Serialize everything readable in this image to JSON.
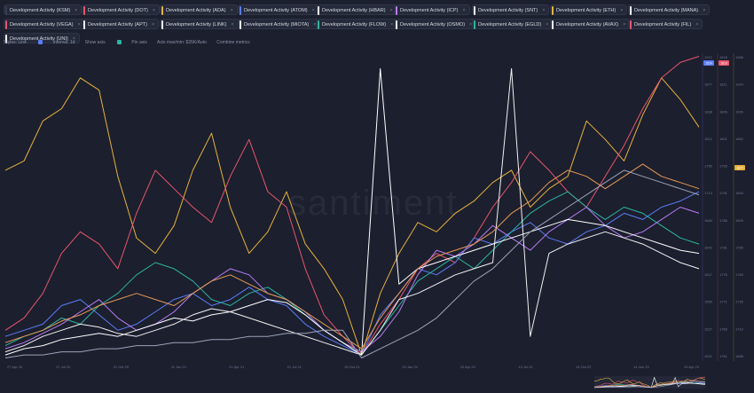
{
  "metric_chips": [
    {
      "label": "Development Activity (KSM)",
      "color": "#3b3f54",
      "close": "×"
    },
    {
      "label": "Development Activity (DOT)",
      "color": "#e8556d",
      "close": "×"
    },
    {
      "label": "Development Activity (ADA)",
      "color": "#e6b33b",
      "close": "×"
    },
    {
      "label": "Development Activity (ATOM)",
      "color": "#5b7cf7",
      "close": "×"
    },
    {
      "label": "Development Activity (HBAR)",
      "color": "#ffffff",
      "close": "×"
    },
    {
      "label": "Development Activity (ICP)",
      "color": "#b77cf2",
      "close": "×"
    },
    {
      "label": "Development Activity (SNT)",
      "color": "#ffffff",
      "close": "×"
    },
    {
      "label": "Development Activity (ETH)",
      "color": "#e6b33b",
      "close": "×"
    },
    {
      "label": "Development Activity (MANA)",
      "color": "#ffffff",
      "close": "×"
    },
    {
      "label": "Development Activity (VEGA)",
      "color": "#e8556d",
      "close": "×"
    },
    {
      "label": "Development Activity (APT)",
      "color": "#ffffff",
      "close": "×"
    },
    {
      "label": "Development Activity (LINK)",
      "color": "#ffffff",
      "close": "×"
    },
    {
      "label": "Development Activity (MIOTA)",
      "color": "#ffffff",
      "close": "×"
    },
    {
      "label": "Development Activity (FLOW)",
      "color": "#2bb5a0",
      "close": "×"
    },
    {
      "label": "Development Activity (OSMO)",
      "color": "#ffffff",
      "close": "×"
    },
    {
      "label": "Development Activity (EGLD)",
      "color": "#2bb5a0",
      "close": "×"
    },
    {
      "label": "Development Activity (AVAX)",
      "color": "#ffffff",
      "close": "×"
    },
    {
      "label": "Development Activity (FIL)",
      "color": "#e8556d",
      "close": "×"
    },
    {
      "label": "Development Activity (UNI)",
      "color": "#ffffff",
      "close": "×"
    }
  ],
  "toolbar": {
    "styles": "Styles: Line",
    "interval": "Interval: 1d",
    "show_axis": "Show axis",
    "pin_axis": "Pin axis",
    "axis_max_min": "Axis max/min: $35K/Auto",
    "combine": "Combine metrics",
    "accent": "#5b7cf7",
    "pin_color": "#2bb5a0"
  },
  "watermark": "santiment",
  "chart_data": {
    "type": "line",
    "title": "",
    "xlabel": "",
    "ylabel": "",
    "x_tick_labels": [
      "27 Apr 20",
      "27 Jul 20",
      "21 Oct 20",
      "11 Jan 21",
      "21 Apr 21",
      "21 Jul 21",
      "20 Oct 21",
      "20 Jan 22",
      "20 Apr 22",
      "13 Jul 22",
      "14 Oct 22",
      "14 Jan 23",
      "19 Apr 23"
    ],
    "y_axes": [
      {
        "ticks": [
          "1912",
          "1877",
          "1838",
          "1812",
          "1765",
          "1714",
          "1684",
          "1642",
          "1617",
          "1565",
          "1527",
          "1521"
        ],
        "badge": "1524",
        "badge_color": "#5b7cf7"
      },
      {
        "ticks": [
          "1818",
          "1811",
          "1806",
          "1801",
          "1796",
          "1791",
          "1786",
          "1781",
          "1776",
          "1771",
          "1766",
          "1761"
        ],
        "badge": "1819",
        "badge_color": "#e8556d"
      },
      {
        "ticks": [
          "1968",
          "1924",
          "1906",
          "1882",
          "1858",
          "1834",
          "1809",
          "1785",
          "1760",
          "1735",
          "1710",
          "1685"
        ],
        "badge": "1877",
        "badge_color": "#e6b33b"
      }
    ],
    "series": [
      {
        "color": "#e6b33b",
        "values": [
          0.62,
          0.65,
          0.78,
          0.82,
          0.92,
          0.88,
          0.6,
          0.4,
          0.35,
          0.44,
          0.62,
          0.74,
          0.5,
          0.35,
          0.42,
          0.55,
          0.38,
          0.3,
          0.2,
          0.02,
          0.22,
          0.35,
          0.45,
          0.42,
          0.48,
          0.52,
          0.58,
          0.62,
          0.5,
          0.56,
          0.6,
          0.78,
          0.72,
          0.65,
          0.8,
          0.92,
          0.85,
          0.76
        ]
      },
      {
        "color": "#e8556d",
        "values": [
          0.1,
          0.14,
          0.22,
          0.35,
          0.42,
          0.38,
          0.3,
          0.48,
          0.62,
          0.56,
          0.5,
          0.45,
          0.6,
          0.72,
          0.55,
          0.5,
          0.3,
          0.15,
          0.08,
          0.02,
          0.12,
          0.2,
          0.3,
          0.35,
          0.32,
          0.4,
          0.5,
          0.58,
          0.68,
          0.62,
          0.55,
          0.5,
          0.6,
          0.7,
          0.82,
          0.92,
          0.97,
          0.99
        ]
      },
      {
        "color": "#5b7cf7",
        "values": [
          0.08,
          0.1,
          0.12,
          0.18,
          0.2,
          0.15,
          0.1,
          0.12,
          0.16,
          0.2,
          0.22,
          0.18,
          0.2,
          0.24,
          0.2,
          0.18,
          0.12,
          0.08,
          0.05,
          0.02,
          0.15,
          0.22,
          0.3,
          0.28,
          0.32,
          0.4,
          0.38,
          0.42,
          0.45,
          0.4,
          0.38,
          0.42,
          0.44,
          0.48,
          0.46,
          0.5,
          0.52,
          0.55
        ]
      },
      {
        "color": "#2bb5a0",
        "values": [
          0.05,
          0.08,
          0.1,
          0.14,
          0.12,
          0.18,
          0.22,
          0.28,
          0.32,
          0.3,
          0.26,
          0.2,
          0.18,
          0.22,
          0.24,
          0.2,
          0.15,
          0.1,
          0.06,
          0.02,
          0.1,
          0.18,
          0.26,
          0.3,
          0.34,
          0.3,
          0.36,
          0.42,
          0.48,
          0.52,
          0.55,
          0.5,
          0.46,
          0.5,
          0.48,
          0.44,
          0.4,
          0.38
        ]
      },
      {
        "color": "#b77cf2",
        "values": [
          0.04,
          0.06,
          0.09,
          0.12,
          0.16,
          0.2,
          0.14,
          0.1,
          0.12,
          0.16,
          0.22,
          0.26,
          0.3,
          0.28,
          0.22,
          0.2,
          0.16,
          0.1,
          0.06,
          0.03,
          0.08,
          0.16,
          0.28,
          0.36,
          0.34,
          0.38,
          0.44,
          0.4,
          0.36,
          0.42,
          0.46,
          0.5,
          0.44,
          0.4,
          0.42,
          0.46,
          0.5,
          0.48
        ]
      },
      {
        "color": "#ffffff",
        "values": [
          0.02,
          0.04,
          0.05,
          0.07,
          0.08,
          0.09,
          0.08,
          0.1,
          0.12,
          0.14,
          0.13,
          0.15,
          0.16,
          0.18,
          0.2,
          0.19,
          0.15,
          0.1,
          0.06,
          0.02,
          0.95,
          0.25,
          0.3,
          0.32,
          0.34,
          0.36,
          0.38,
          0.4,
          0.42,
          0.44,
          0.46,
          0.45,
          0.44,
          0.42,
          0.4,
          0.38,
          0.36,
          0.35
        ]
      },
      {
        "color": "#f2f2f2",
        "values": [
          0.03,
          0.05,
          0.08,
          0.1,
          0.12,
          0.11,
          0.09,
          0.08,
          0.1,
          0.12,
          0.15,
          0.17,
          0.16,
          0.14,
          0.12,
          0.1,
          0.08,
          0.06,
          0.04,
          0.02,
          0.1,
          0.2,
          0.22,
          0.25,
          0.28,
          0.3,
          0.32,
          0.95,
          0.08,
          0.35,
          0.38,
          0.4,
          0.42,
          0.4,
          0.38,
          0.35,
          0.32,
          0.3
        ]
      },
      {
        "color": "#e59a55",
        "values": [
          0.06,
          0.08,
          0.1,
          0.13,
          0.15,
          0.18,
          0.2,
          0.22,
          0.2,
          0.18,
          0.22,
          0.26,
          0.28,
          0.25,
          0.22,
          0.2,
          0.16,
          0.12,
          0.08,
          0.04,
          0.14,
          0.22,
          0.3,
          0.34,
          0.36,
          0.38,
          0.42,
          0.48,
          0.52,
          0.58,
          0.62,
          0.6,
          0.56,
          0.6,
          0.64,
          0.6,
          0.58,
          0.56
        ]
      },
      {
        "color": "#9ba3b8",
        "values": [
          0.01,
          0.02,
          0.02,
          0.03,
          0.03,
          0.04,
          0.04,
          0.05,
          0.05,
          0.06,
          0.06,
          0.07,
          0.07,
          0.08,
          0.08,
          0.09,
          0.09,
          0.1,
          0.1,
          0.01,
          0.04,
          0.07,
          0.1,
          0.14,
          0.2,
          0.26,
          0.3,
          0.36,
          0.42,
          0.46,
          0.5,
          0.54,
          0.58,
          0.62,
          0.6,
          0.58,
          0.56,
          0.54
        ]
      }
    ]
  }
}
